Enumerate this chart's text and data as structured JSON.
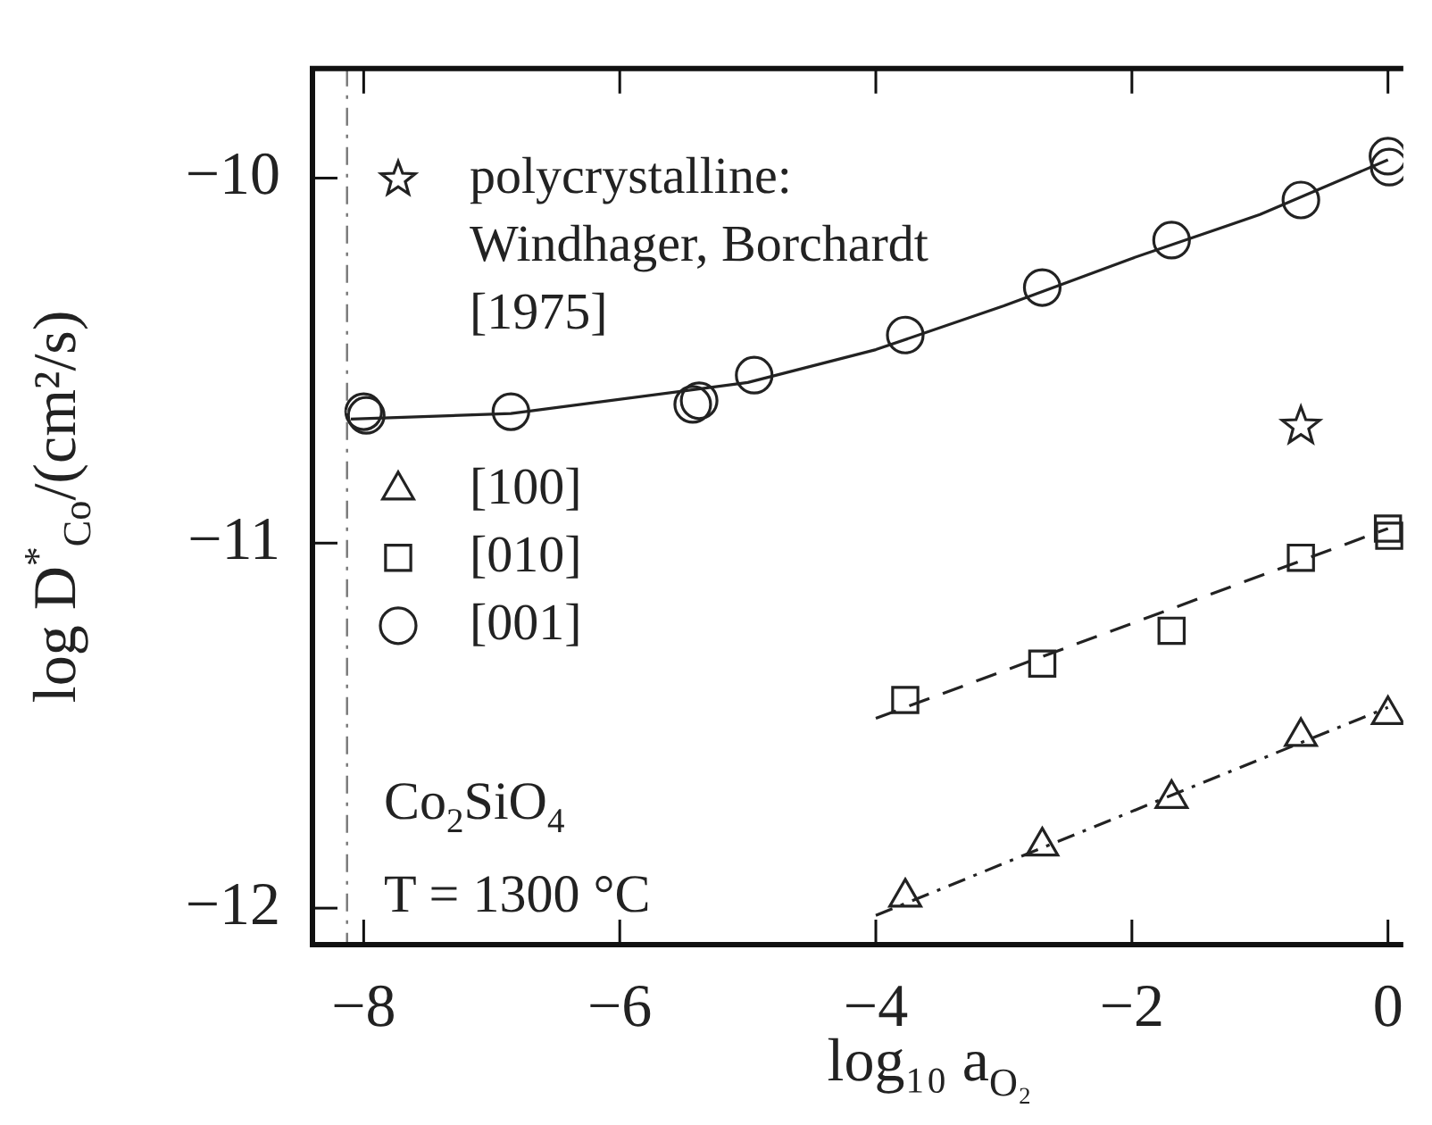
{
  "chart_data": {
    "type": "scatter",
    "xlabel": "log₁₀ a$_{O₂}$",
    "ylabel": "log D$^{*}$$_{Co}$/(cm²/s)",
    "xlim": [
      -8.4,
      0.12
    ],
    "ylim": [
      -12.1,
      -9.7
    ],
    "xticks": [
      -8,
      -6,
      -4,
      -2,
      0
    ],
    "yticks": [
      -12,
      -11,
      -10
    ],
    "grid": false,
    "legend": "left",
    "series": [
      {
        "name": "polycrystalline: Windhager, Borchardt [1975]",
        "marker": "star",
        "color": "#222222",
        "x": [
          -0.68
        ],
        "values": [
          -10.68
        ]
      },
      {
        "name": "[100]",
        "marker": "triangle",
        "color": "#222222",
        "x": [
          -3.77,
          -2.7,
          -1.69,
          -0.68,
          0
        ],
        "values": [
          -11.97,
          -11.83,
          -11.7,
          -11.53,
          -11.47
        ]
      },
      {
        "name": "[010]",
        "marker": "square",
        "color": "#222222",
        "x": [
          -3.77,
          -2.7,
          -1.69,
          -0.68,
          0,
          0.01
        ],
        "values": [
          -11.43,
          -11.33,
          -11.24,
          -11.04,
          -10.96,
          -10.98
        ]
      },
      {
        "name": "[001]",
        "marker": "circle",
        "color": "#222222",
        "x": [
          -8.0,
          -7.98,
          -6.85,
          -5.43,
          -5.38,
          -4.95,
          -3.77,
          -2.7,
          -1.69,
          -0.68,
          0,
          0.01
        ],
        "values": [
          -10.64,
          -10.65,
          -10.64,
          -10.62,
          -10.61,
          -10.54,
          -10.43,
          -10.3,
          -10.17,
          -10.06,
          -9.94,
          -9.97
        ]
      },
      {
        "type": "line",
        "marker": "none",
        "line_style": "solid",
        "color": "#222222",
        "x": [
          -8.1,
          -6.85,
          -5,
          -4,
          -3,
          -2,
          -1,
          0
        ],
        "values": [
          -10.66,
          -10.645,
          -10.56,
          -10.47,
          -10.35,
          -10.22,
          -10.1,
          -9.95
        ]
      },
      {
        "type": "line",
        "marker": "none",
        "line_style": "dashed",
        "color": "#222222",
        "x": [
          -4,
          0
        ],
        "values": [
          -11.48,
          -10.96
        ]
      },
      {
        "type": "line",
        "marker": "none",
        "line_style": "dotted",
        "color": "#222222",
        "x": [
          -4,
          0
        ],
        "values": [
          -12.02,
          -11.45
        ]
      }
    ],
    "ref_lines": [
      {
        "axis": "x",
        "value": -8.13,
        "line_style": "dotted",
        "color": "#777777"
      }
    ],
    "annotations": [
      "Co$_{2}$SiO$_{4}$",
      "T = 1300 °C"
    ]
  }
}
